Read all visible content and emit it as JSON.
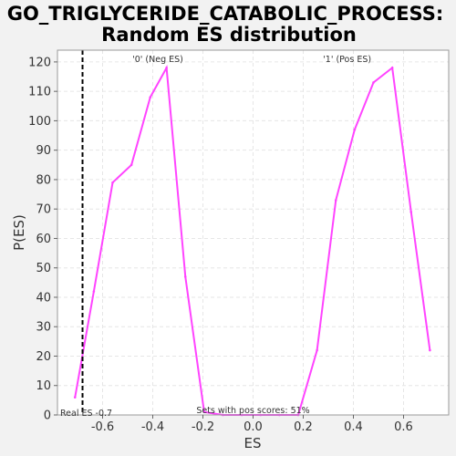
{
  "chart_data": {
    "type": "line",
    "title_line1": "GO_TRIGLYCERIDE_CATABOLIC_PROCESS:",
    "title_line2": "Random ES distribution",
    "xlabel": "ES",
    "ylabel": "P(ES)",
    "xlim": [
      -0.78,
      0.78
    ],
    "ylim": [
      0,
      124
    ],
    "xticks": [
      -0.6,
      -0.4,
      -0.2,
      0.0,
      0.2,
      0.4,
      0.6
    ],
    "xtick_labels": [
      "-0.6",
      "-0.4",
      "-0.2",
      "0.0",
      "0.2",
      "0.4",
      "0.6"
    ],
    "yticks": [
      0,
      10,
      20,
      30,
      40,
      50,
      60,
      70,
      80,
      90,
      100,
      110,
      120
    ],
    "ytick_labels": [
      "0",
      "10",
      "20",
      "30",
      "40",
      "50",
      "60",
      "70",
      "80",
      "90",
      "100",
      "110",
      "120"
    ],
    "grid": true,
    "series": [
      {
        "color": "#ff44ff",
        "x": [
          -0.71,
          -0.635,
          -0.56,
          -0.485,
          -0.41,
          -0.345,
          -0.27,
          -0.195,
          -0.12,
          -0.045,
          0.03,
          0.105,
          0.18,
          0.255,
          0.33,
          0.405,
          0.48,
          0.555,
          0.63,
          0.705
        ],
        "y": [
          6,
          42,
          79,
          85,
          108,
          118,
          47,
          1,
          0,
          0,
          0,
          0,
          0,
          22,
          73,
          97,
          113,
          118,
          69,
          22
        ]
      }
    ],
    "real_es": {
      "x": -0.68,
      "label": "Real ES -0.7",
      "color": "#000000"
    },
    "annotations": [
      {
        "text": "'0' (Neg ES)",
        "color": "#0000cc",
        "x": -0.38
      },
      {
        "text": "'1' (Pos ES)",
        "color": "#cc0000",
        "x": 0.375
      },
      {
        "text": "Sets with pos scores: 51%",
        "color": "#333333",
        "x": 0.0
      }
    ]
  }
}
